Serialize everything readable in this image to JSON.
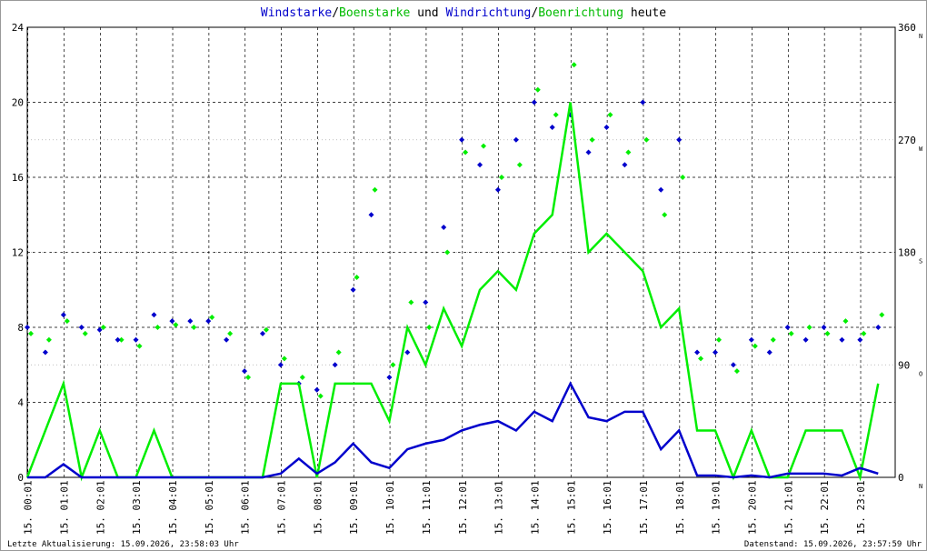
{
  "chart_data": {
    "type": "line",
    "title_text": [
      "/",
      " und ",
      "/",
      " heute"
    ],
    "x": [
      0,
      0.5,
      1,
      1.5,
      2,
      2.5,
      3,
      3.5,
      4,
      4.5,
      5,
      5.5,
      6,
      6.5,
      7,
      7.5,
      8,
      8.5,
      9,
      9.5,
      10,
      10.5,
      11,
      11.5,
      12,
      12.5,
      13,
      13.5,
      14,
      14.5,
      15,
      15.5,
      16,
      16.5,
      17,
      17.5,
      18,
      18.5,
      19,
      19.5,
      20,
      20.5,
      21,
      21.5,
      22,
      22.5,
      23,
      23.5
    ],
    "series": [
      {
        "name": "Windstarke",
        "color": "#0000cc",
        "kind": "line",
        "values": [
          0,
          0,
          0.7,
          0,
          0,
          0,
          0,
          0,
          0,
          0,
          0,
          0,
          0,
          0,
          0.2,
          1,
          0.2,
          0.8,
          1.8,
          0.8,
          0.5,
          1.5,
          1.8,
          2,
          2.5,
          2.8,
          3,
          2.5,
          3.5,
          3,
          5,
          3.2,
          3,
          3.5,
          3.5,
          1.5,
          2.5,
          0.1,
          0.1,
          0,
          0.1,
          0,
          0.2,
          0.2,
          0.2,
          0.1,
          0.5,
          0.2
        ]
      },
      {
        "name": "Boenstarke",
        "color": "#00ee00",
        "kind": "line",
        "values": [
          0,
          2.5,
          5,
          0,
          2.5,
          0,
          0,
          2.5,
          0,
          0,
          0,
          0,
          0,
          0,
          5,
          5,
          0,
          5,
          5,
          5,
          3,
          8,
          6,
          9,
          7,
          10,
          11,
          10,
          13,
          14,
          20,
          12,
          13,
          12,
          11,
          8,
          9,
          2.5,
          2.5,
          0,
          2.5,
          0,
          0,
          2.5,
          2.5,
          2.5,
          0,
          5
        ]
      },
      {
        "name": "Windrichtung",
        "color": "#0000cc",
        "kind": "scatter",
        "axis": "y2",
        "values": [
          120,
          100,
          130,
          120,
          118,
          110,
          110,
          130,
          125,
          125,
          125,
          110,
          85,
          115,
          90,
          75,
          70,
          90,
          150,
          210,
          80,
          100,
          140,
          200,
          270,
          250,
          230,
          270,
          300,
          280,
          290,
          260,
          280,
          250,
          300,
          230,
          270,
          100,
          100,
          90,
          110,
          100,
          120,
          110,
          120,
          110,
          110,
          120
        ]
      },
      {
        "name": "Boenrichtung",
        "color": "#00ee00",
        "kind": "scatter",
        "axis": "y2",
        "values": [
          115,
          110,
          125,
          115,
          120,
          110,
          105,
          120,
          122,
          120,
          128,
          115,
          80,
          118,
          95,
          80,
          65,
          100,
          160,
          230,
          90,
          140,
          120,
          180,
          260,
          265,
          240,
          250,
          310,
          290,
          330,
          270,
          290,
          260,
          270,
          210,
          240,
          95,
          110,
          85,
          105,
          110,
          115,
          120,
          115,
          125,
          115,
          130
        ]
      }
    ],
    "xlim": [
      0,
      23.97
    ],
    "xticks": [
      {
        "value": 0.0167,
        "label": "15. 00:01"
      },
      {
        "value": 1.0167,
        "label": "15. 01:01"
      },
      {
        "value": 2.0167,
        "label": "15. 02:01"
      },
      {
        "value": 3.0167,
        "label": "15. 03:01"
      },
      {
        "value": 4.0167,
        "label": "15. 04:01"
      },
      {
        "value": 5.0167,
        "label": "15. 05:01"
      },
      {
        "value": 6.0167,
        "label": "15. 06:01"
      },
      {
        "value": 7.0167,
        "label": "15. 07:01"
      },
      {
        "value": 8.0167,
        "label": "15. 08:01"
      },
      {
        "value": 9.0167,
        "label": "15. 09:01"
      },
      {
        "value": 10.0167,
        "label": "15. 10:01"
      },
      {
        "value": 11.0167,
        "label": "15. 11:01"
      },
      {
        "value": 12.0167,
        "label": "15. 12:01"
      },
      {
        "value": 13.0167,
        "label": "15. 13:01"
      },
      {
        "value": 14.0167,
        "label": "15. 14:01"
      },
      {
        "value": 15.0167,
        "label": "15. 15:01"
      },
      {
        "value": 16.0167,
        "label": "15. 16:01"
      },
      {
        "value": 17.0167,
        "label": "15. 17:01"
      },
      {
        "value": 18.0167,
        "label": "15. 18:01"
      },
      {
        "value": 19.0167,
        "label": "15. 19:01"
      },
      {
        "value": 20.0167,
        "label": "15. 20:01"
      },
      {
        "value": 21.0167,
        "label": "15. 21:01"
      },
      {
        "value": 22.0167,
        "label": "15. 22:01"
      },
      {
        "value": 23.0167,
        "label": "15. 23:01"
      }
    ],
    "ylim": [
      0,
      24
    ],
    "yticks": [
      0,
      4,
      8,
      12,
      16,
      20,
      24
    ],
    "y2lim": [
      0,
      360
    ],
    "y2ticks": [
      0,
      90,
      180,
      270,
      360
    ],
    "y2tick_compass": [
      "N",
      "O",
      "S",
      "W",
      "N"
    ],
    "grid": true,
    "footer_left": "Letzte Aktualisierung: 15.09.2026, 23:58:03 Uhr",
    "footer_right": "Datenstand: 15.09.2026, 23:57:59 Uhr"
  }
}
